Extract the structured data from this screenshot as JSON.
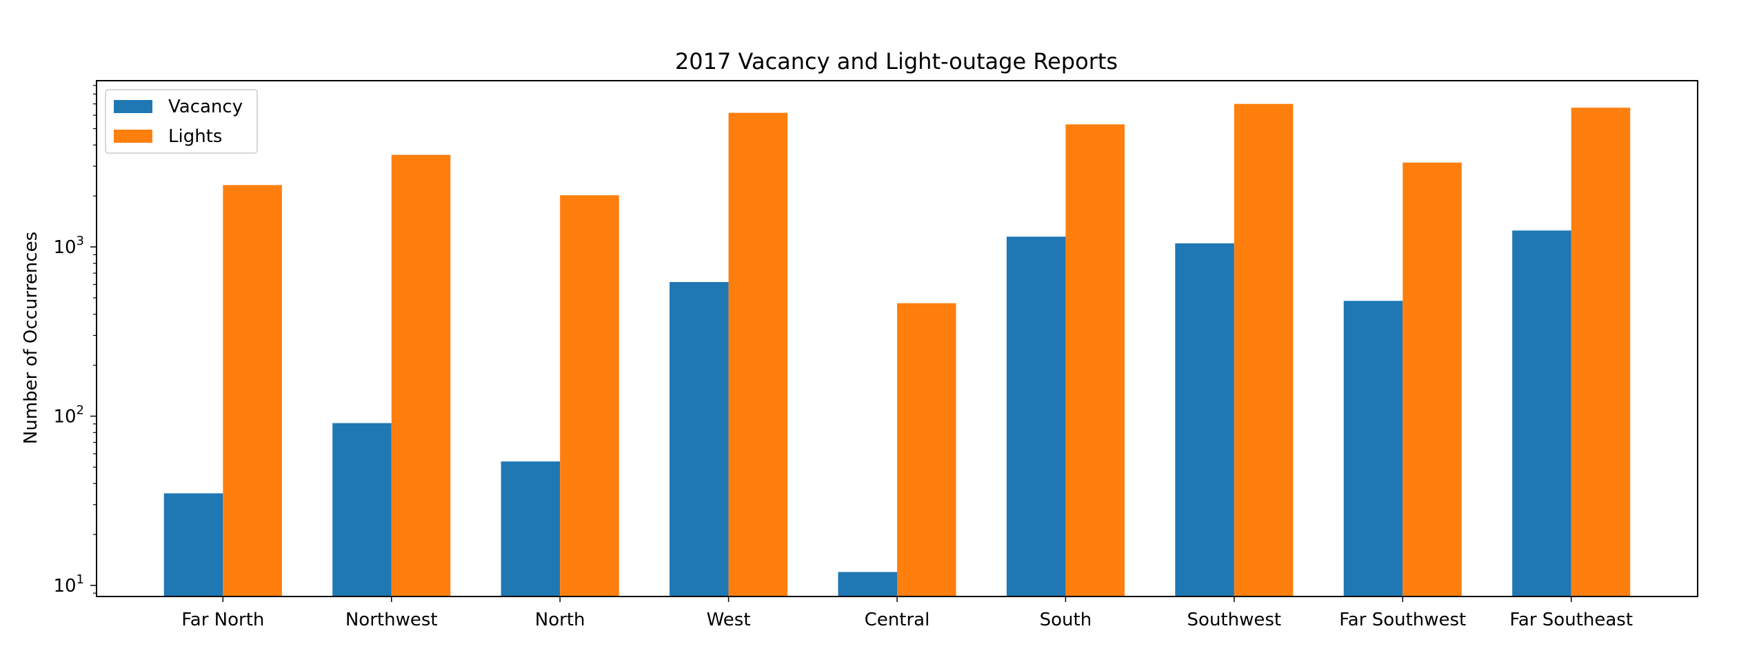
{
  "chart_data": {
    "type": "bar",
    "title": "2017 Vacancy and Light-outage Reports",
    "xlabel": "",
    "ylabel": "Number of Occurrences",
    "yscale": "log",
    "ylim": [
      8.6,
      9600
    ],
    "yticks": [
      {
        "value": 10,
        "base": "10",
        "exp": "1"
      },
      {
        "value": 100,
        "base": "10",
        "exp": "2"
      },
      {
        "value": 1000,
        "base": "10",
        "exp": "3"
      }
    ],
    "categories": [
      "Far North",
      "Northwest",
      "North",
      "West",
      "Central",
      "South",
      "Southwest",
      "Far Southwest",
      "Far Southeast"
    ],
    "series": [
      {
        "name": "Vacancy",
        "color": "#1f77b4",
        "values": [
          35,
          91,
          54,
          620,
          12,
          1150,
          1050,
          480,
          1250
        ]
      },
      {
        "name": "Lights",
        "color": "#ff7f0e",
        "values": [
          2320,
          3500,
          2020,
          6200,
          465,
          5300,
          7000,
          3150,
          6650
        ]
      }
    ],
    "legend": "top-left",
    "grid": false
  }
}
